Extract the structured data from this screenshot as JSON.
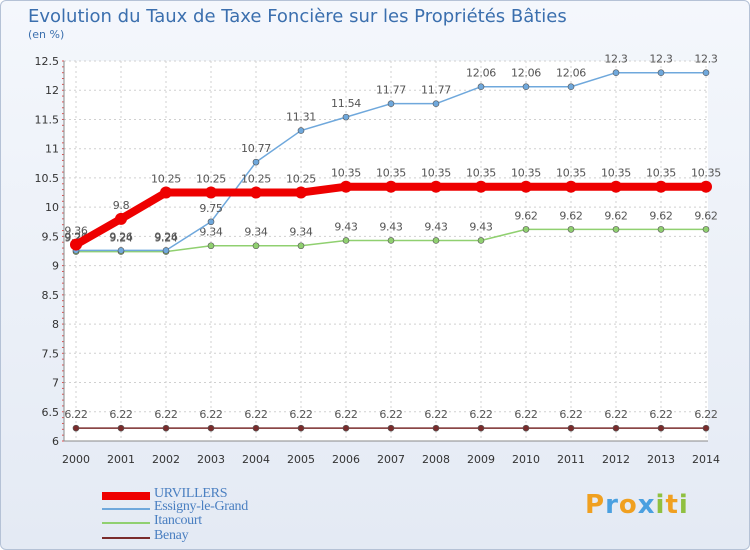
{
  "chart_data": {
    "type": "line",
    "title": "Evolution du Taux de Taxe Foncière sur les Propriétés Bâties",
    "ylabel": "(en %)",
    "xlabel": "",
    "ylim": [
      6,
      12.5
    ],
    "yticks": [
      "6",
      "6.5",
      "7",
      "7.5",
      "8",
      "8.5",
      "9",
      "9.5",
      "10",
      "10.5",
      "11",
      "11.5",
      "12",
      "12.5"
    ],
    "categories": [
      "2000",
      "2001",
      "2002",
      "2003",
      "2004",
      "2005",
      "2006",
      "2007",
      "2008",
      "2009",
      "2010",
      "2011",
      "2012",
      "2013",
      "2014"
    ],
    "series": [
      {
        "name": "Benay",
        "color": "#7a2c2c",
        "values": [
          6.22,
          6.22,
          6.22,
          6.22,
          6.22,
          6.22,
          6.22,
          6.22,
          6.22,
          6.22,
          6.22,
          6.22,
          6.22,
          6.22,
          6.22
        ],
        "labels": [
          "6.22",
          "6.22",
          "6.22",
          "6.22",
          "6.22",
          "6.22",
          "6.22",
          "6.22",
          "6.22",
          "6.22",
          "6.22",
          "6.22",
          "6.22",
          "6.22",
          "6.22"
        ]
      },
      {
        "name": "Itancourt",
        "color": "#90d070",
        "values": [
          9.24,
          9.24,
          9.24,
          9.34,
          9.34,
          9.34,
          9.43,
          9.43,
          9.43,
          9.43,
          9.62,
          9.62,
          9.62,
          9.62,
          9.62
        ],
        "labels": [
          "9.24",
          "9.24",
          "9.24",
          "9.34",
          "9.34",
          "9.34",
          "9.43",
          "9.43",
          "9.43",
          "9.43",
          "9.62",
          "9.62",
          "9.62",
          "9.62",
          "9.62"
        ]
      },
      {
        "name": "Essigny-le-Grand",
        "color": "#6fa8dc",
        "values": [
          9.26,
          9.26,
          9.26,
          9.75,
          10.77,
          11.31,
          11.54,
          11.77,
          11.77,
          12.06,
          12.06,
          12.06,
          12.3,
          12.3,
          12.3
        ],
        "labels": [
          "9.26",
          "9.26",
          "9.26",
          "9.75",
          "10.77",
          "11.31",
          "11.54",
          "11.77",
          "11.77",
          "12.06",
          "12.06",
          "12.06",
          "12.3",
          "12.3",
          "12.3"
        ]
      },
      {
        "name": "URVILLERS",
        "color": "#ee0000",
        "values": [
          9.36,
          9.8,
          10.25,
          10.25,
          10.25,
          10.25,
          10.35,
          10.35,
          10.35,
          10.35,
          10.35,
          10.35,
          10.35,
          10.35,
          10.35
        ],
        "labels": [
          "9.36",
          "9.8",
          "10.25",
          "10.25",
          "10.25",
          "10.25",
          "10.35",
          "10.35",
          "10.35",
          "10.35",
          "10.35",
          "10.35",
          "10.35",
          "10.35",
          "10.35"
        ]
      }
    ],
    "legend": [
      "URVILLERS",
      "Essigny-le-Grand",
      "Itancourt",
      "Benay"
    ]
  },
  "logo": {
    "letters": [
      "P",
      "r",
      "o",
      "x",
      "i",
      "t",
      "i"
    ],
    "colors": [
      "#f0a020",
      "#4aa0e0",
      "#f0a020",
      "#4aa0e0",
      "#90c040",
      "#f0a020",
      "#90c040"
    ]
  }
}
